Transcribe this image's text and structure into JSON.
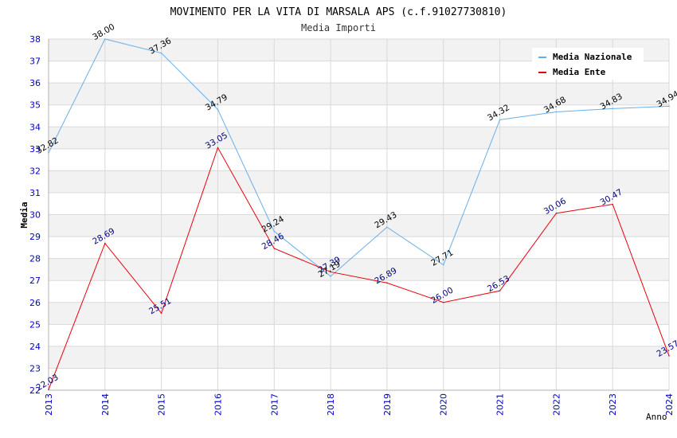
{
  "chart_data": {
    "type": "line",
    "title": "MOVIMENTO PER LA VITA DI MARSALA APS (c.f.91027730810)",
    "subtitle": "Media Importi",
    "xlabel": "Anno",
    "ylabel": "Media",
    "ylim": [
      22,
      38
    ],
    "yticks": [
      "22",
      "23",
      "24",
      "25",
      "26",
      "27",
      "28",
      "29",
      "30",
      "31",
      "32",
      "33",
      "34",
      "35",
      "36",
      "37",
      "38"
    ],
    "x": [
      "2013",
      "2014",
      "2015",
      "2016",
      "2017",
      "2018",
      "2019",
      "2020",
      "2021",
      "2022",
      "2023",
      "2024"
    ],
    "grid": true,
    "legend_position": "top-right",
    "series": [
      {
        "name": "Media Nazionale",
        "color": "#6aaee8",
        "label_color": "#000000",
        "values": [
          32.82,
          38.0,
          37.36,
          34.79,
          29.24,
          27.19,
          29.43,
          27.71,
          34.32,
          34.68,
          34.83,
          34.94
        ],
        "labels": [
          "32.82",
          "38.00",
          "37.36",
          "34.79",
          "29.24",
          "27.19",
          "29.43",
          "27.71",
          "34.32",
          "34.68",
          "34.83",
          "34.94"
        ]
      },
      {
        "name": "Media Ente",
        "color": "#e8000b",
        "label_color": "#00007a",
        "values": [
          22.03,
          28.69,
          25.51,
          33.05,
          28.46,
          27.39,
          26.89,
          26.0,
          26.53,
          30.06,
          30.47,
          23.57
        ],
        "labels": [
          "22.03",
          "28.69",
          "25.51",
          "33.05",
          "28.46",
          "27.39",
          "26.89",
          "26.00",
          "26.53",
          "30.06",
          "30.47",
          "23.57"
        ]
      }
    ]
  }
}
